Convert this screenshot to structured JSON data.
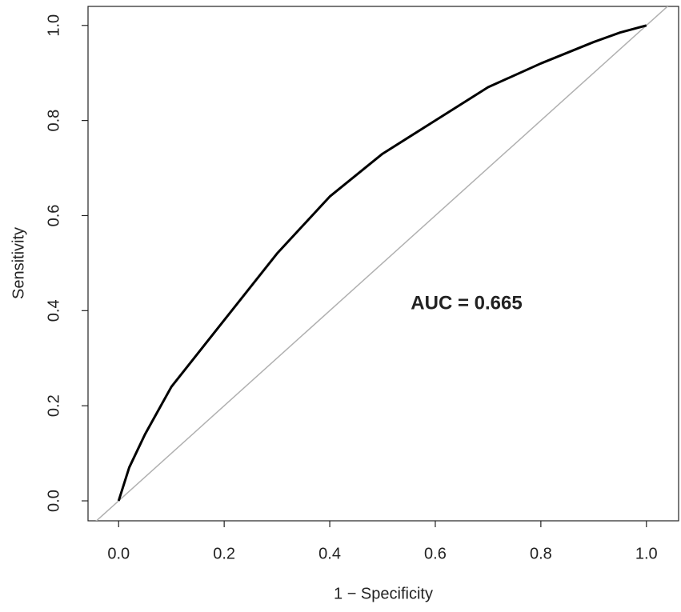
{
  "chart_data": {
    "type": "line",
    "xlabel": "1 − Specificity",
    "ylabel": "Sensitivity",
    "annotation": "AUC = 0.665",
    "xlim": [
      -0.058,
      1.061
    ],
    "ylim": [
      -0.042,
      1.04
    ],
    "xticks": [
      {
        "value": 0,
        "label": "0.0"
      },
      0.2,
      0.4,
      0.6,
      0.8,
      {
        "value": 1,
        "label": "1.0"
      }
    ],
    "yticks": [
      {
        "value": 0,
        "label": "0.0"
      },
      0.2,
      0.4,
      0.6,
      0.8,
      {
        "value": 1,
        "label": "1.0"
      }
    ],
    "reference_color": "#b0b0b0",
    "series": [
      {
        "color": "#000000",
        "x": [
          0,
          0.02,
          0.05,
          0.1,
          0.15,
          0.2,
          0.3,
          0.4,
          0.5,
          0.6,
          0.7,
          0.8,
          0.9,
          0.95,
          1
        ],
        "values": [
          0,
          0.07,
          0.14,
          0.24,
          0.31,
          0.38,
          0.52,
          0.64,
          0.73,
          0.8,
          0.87,
          0.92,
          0.965,
          0.985,
          1
        ]
      }
    ]
  }
}
